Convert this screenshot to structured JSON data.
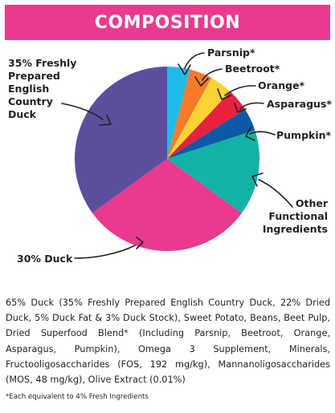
{
  "title": "COMPOSITION",
  "chart_data": {
    "type": "pie",
    "title": "COMPOSITION",
    "unit": "%",
    "start_angle_deg": 0,
    "direction": "clockwise",
    "slices": [
      {
        "key": "parsnip",
        "label": "Parsnip*",
        "value": 4,
        "color": "#1fbbe8"
      },
      {
        "key": "beetroot",
        "label": "Beetroot*",
        "value": 4,
        "color": "#f47b29"
      },
      {
        "key": "orange",
        "label": "Orange*",
        "value": 4,
        "color": "#fcd234"
      },
      {
        "key": "asparagus",
        "label": "Asparagus*",
        "value": 4,
        "color": "#e8213f"
      },
      {
        "key": "pumpkin",
        "label": "Pumpkin*",
        "value": 4,
        "color": "#0d59a8"
      },
      {
        "key": "other",
        "label": "Other\nFunctional\nIngredients",
        "value": 15,
        "color": "#13b2a6"
      },
      {
        "key": "duck30",
        "label": "30% Duck",
        "value": 30,
        "color": "#e93a8f"
      },
      {
        "key": "duck35",
        "label": "35% Freshly\nPrepared\nEnglish\nCountry\nDuck",
        "value": 35,
        "color": "#5b4f9d"
      }
    ]
  },
  "ingredients_text": "65% Duck (35% Freshly Prepared English Country Duck, 22% Dried Duck, 5% Duck Fat & 3% Duck Stock), Sweet Potato, Beans, Beet Pulp, Dried Superfood Blend* (Including Parsnip, Beetroot, Orange, Asparagus, Pumpkin), Omega 3 Supplement, Minerals, Fructooligosaccharides (FOS, 192 mg/kg), Mannanoligosaccharides (MOS, 48 mg/kg), Olive Extract (0.01%)",
  "footnote": "*Each equivalent to 4% Fresh Ingredients"
}
